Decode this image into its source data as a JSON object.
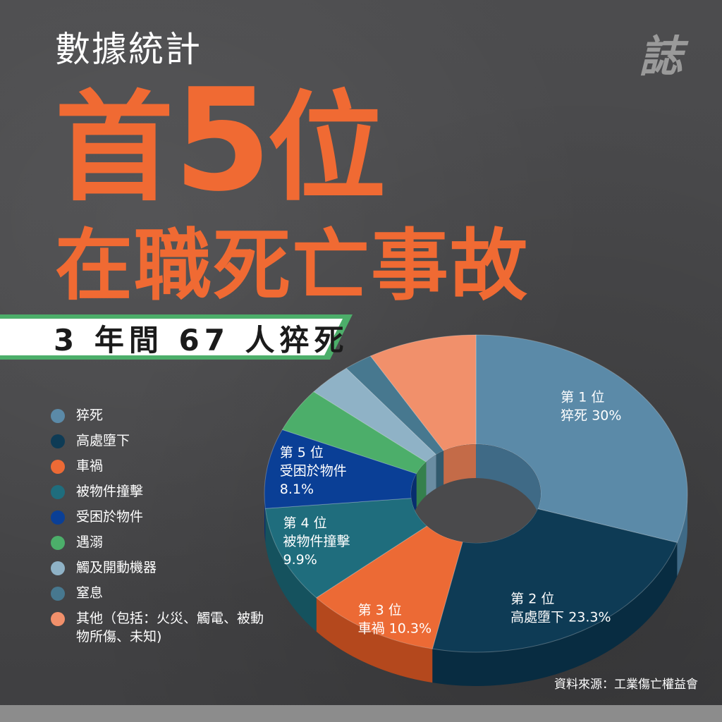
{
  "header": {
    "subtitle": "數據統計",
    "title_prefix": "首",
    "title_number": "5",
    "title_suffix": "位",
    "title_line2": "在職死亡事故",
    "banner": "3 年間 67 人猝死",
    "logo": "誌"
  },
  "colors": {
    "accent": "#f06a33",
    "banner": "#4cae6a"
  },
  "source": "資料來源：工業傷亡權益會",
  "chart_data": {
    "type": "pie",
    "variant": "3d-donut",
    "title": "",
    "legend_position": "left",
    "slices": [
      {
        "name": "猝死",
        "value": 30.0,
        "color": "#5b8aa8",
        "dark": "#3f6a86",
        "rank": "第 1 位",
        "label": "猝死 30%"
      },
      {
        "name": "高處墮下",
        "value": 23.3,
        "color": "#0e3b55",
        "dark": "#082c41",
        "rank": "第 2 位",
        "label": "高處墮下 23.3%"
      },
      {
        "name": "車禍",
        "value": 10.3,
        "color": "#ec6a35",
        "dark": "#b4481d",
        "rank": "第 3 位",
        "label": "車禍 10.3%"
      },
      {
        "name": "被物件撞擊",
        "value": 9.9,
        "color": "#1f6d7d",
        "dark": "#15525e",
        "rank": "第 4 位",
        "label": "被物件撞擊\n9.9%"
      },
      {
        "name": "受困於物件",
        "value": 8.1,
        "color": "#0a3f96",
        "dark": "#072e6f",
        "rank": "第 5 位",
        "label": "受困於物件\n8.1%"
      },
      {
        "name": "遇溺",
        "value": 4.5,
        "color": "#4cae6a",
        "dark": "#35804d",
        "rank": "",
        "label": ""
      },
      {
        "name": "觸及開動機器",
        "value": 3.4,
        "color": "#8fb2c6",
        "dark": "#6a8da2",
        "rank": "",
        "label": ""
      },
      {
        "name": "窒息",
        "value": 2.2,
        "color": "#47788f",
        "dark": "#325a6d",
        "rank": "",
        "label": ""
      },
      {
        "name": "其他（包括：火災、觸電、被動物所傷、未知)",
        "value": 8.3,
        "color": "#f1906b",
        "dark": "#c46b48",
        "rank": "",
        "label": ""
      }
    ]
  }
}
